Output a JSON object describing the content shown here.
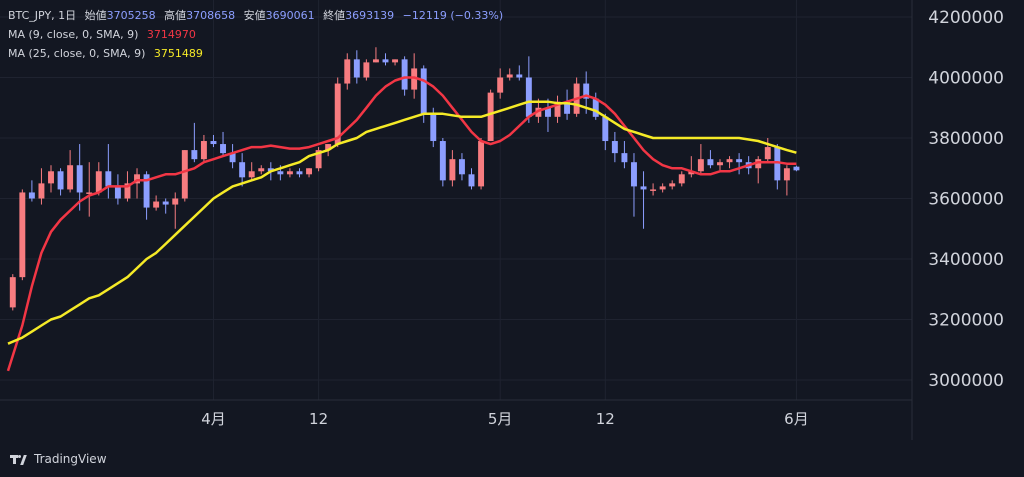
{
  "legend": {
    "symbol": "BTC_JPY, 1日",
    "open_label": "始値",
    "open_value": "3705258",
    "high_label": "高値",
    "high_value": "3708658",
    "low_label": "安値",
    "low_value": "3690061",
    "close_label": "終値",
    "close_value": "3693139",
    "change": "−12119 (−0.33%)",
    "ma9_label": "MA (9, close, 0, SMA, 9)",
    "ma9_value": "3714970",
    "ma25_label": "MA (25, close, 0, SMA, 9)",
    "ma25_value": "3751489"
  },
  "footer": {
    "brand": "TradingView"
  },
  "colors": {
    "background": "#131722",
    "grid": "#1f2330",
    "up": "#f77c80",
    "down": "#8c9eff",
    "ma9": "#f23645",
    "ma25": "#f5ea27",
    "text": "#d1d4dc"
  },
  "chart_data": {
    "type": "candlestick",
    "y_ticks": [
      3000000,
      3200000,
      3400000,
      3600000,
      3800000,
      4000000,
      4200000
    ],
    "y_tick_labels": [
      "3000000",
      "3200000",
      "3400000",
      "3600000",
      "3800000",
      "4000000",
      "4200000"
    ],
    "ylim": [
      2970000,
      4210000
    ],
    "x_ticks": [
      {
        "label": "4月",
        "index": 21
      },
      {
        "label": "12",
        "index": 32
      },
      {
        "label": "5月",
        "index": 51
      },
      {
        "label": "12",
        "index": 62
      },
      {
        "label": "6月",
        "index": 82
      }
    ],
    "x_range": [
      -0.5,
      87
    ],
    "grid": true,
    "candles": [
      [
        3240000,
        3350000,
        3340000,
        3230000
      ],
      [
        3340000,
        3630000,
        3620000,
        3330000
      ],
      [
        3620000,
        3660000,
        3600000,
        3590000
      ],
      [
        3600000,
        3700000,
        3650000,
        3580000
      ],
      [
        3650000,
        3710000,
        3690000,
        3620000
      ],
      [
        3690000,
        3700000,
        3630000,
        3610000
      ],
      [
        3630000,
        3760000,
        3710000,
        3620000
      ],
      [
        3710000,
        3780000,
        3620000,
        3560000
      ],
      [
        3620000,
        3720000,
        3620000,
        3540000
      ],
      [
        3620000,
        3720000,
        3690000,
        3610000
      ],
      [
        3690000,
        3780000,
        3640000,
        3600000
      ],
      [
        3640000,
        3680000,
        3600000,
        3580000
      ],
      [
        3600000,
        3690000,
        3650000,
        3590000
      ],
      [
        3650000,
        3700000,
        3680000,
        3600000
      ],
      [
        3680000,
        3690000,
        3570000,
        3530000
      ],
      [
        3570000,
        3610000,
        3590000,
        3560000
      ],
      [
        3590000,
        3600000,
        3580000,
        3550000
      ],
      [
        3580000,
        3620000,
        3600000,
        3500000
      ],
      [
        3600000,
        3760000,
        3760000,
        3590000
      ],
      [
        3760000,
        3850000,
        3730000,
        3720000
      ],
      [
        3730000,
        3810000,
        3790000,
        3720000
      ],
      [
        3790000,
        3810000,
        3780000,
        3770000
      ],
      [
        3780000,
        3820000,
        3750000,
        3740000
      ],
      [
        3750000,
        3780000,
        3720000,
        3700000
      ],
      [
        3720000,
        3750000,
        3670000,
        3640000
      ],
      [
        3670000,
        3720000,
        3690000,
        3660000
      ],
      [
        3690000,
        3710000,
        3700000,
        3680000
      ],
      [
        3700000,
        3720000,
        3690000,
        3660000
      ],
      [
        3690000,
        3710000,
        3680000,
        3660000
      ],
      [
        3680000,
        3700000,
        3690000,
        3670000
      ],
      [
        3690000,
        3700000,
        3680000,
        3670000
      ],
      [
        3680000,
        3700000,
        3700000,
        3670000
      ],
      [
        3700000,
        3770000,
        3760000,
        3690000
      ],
      [
        3760000,
        3780000,
        3780000,
        3740000
      ],
      [
        3780000,
        4000000,
        3980000,
        3770000
      ],
      [
        3980000,
        4080000,
        4060000,
        3960000
      ],
      [
        4060000,
        4090000,
        4000000,
        3980000
      ],
      [
        4000000,
        4060000,
        4050000,
        3990000
      ],
      [
        4050000,
        4100000,
        4060000,
        4050000
      ],
      [
        4060000,
        4080000,
        4050000,
        4040000
      ],
      [
        4050000,
        4060000,
        4060000,
        4040000
      ],
      [
        4060000,
        4070000,
        3960000,
        3940000
      ],
      [
        3960000,
        4080000,
        4030000,
        3930000
      ],
      [
        4030000,
        4040000,
        3880000,
        3850000
      ],
      [
        3880000,
        3900000,
        3790000,
        3770000
      ],
      [
        3790000,
        3800000,
        3660000,
        3640000
      ],
      [
        3660000,
        3760000,
        3730000,
        3640000
      ],
      [
        3730000,
        3750000,
        3680000,
        3660000
      ],
      [
        3680000,
        3700000,
        3640000,
        3630000
      ],
      [
        3640000,
        3800000,
        3790000,
        3630000
      ],
      [
        3790000,
        3960000,
        3950000,
        3790000
      ],
      [
        3950000,
        4030000,
        4000000,
        3930000
      ],
      [
        4000000,
        4030000,
        4010000,
        3990000
      ],
      [
        4010000,
        4040000,
        4000000,
        3990000
      ],
      [
        4000000,
        4070000,
        3870000,
        3850000
      ],
      [
        3870000,
        3930000,
        3900000,
        3850000
      ],
      [
        3900000,
        3930000,
        3870000,
        3820000
      ],
      [
        3870000,
        3940000,
        3920000,
        3850000
      ],
      [
        3920000,
        3960000,
        3880000,
        3860000
      ],
      [
        3880000,
        4000000,
        3980000,
        3870000
      ],
      [
        3980000,
        4020000,
        3930000,
        3880000
      ],
      [
        3930000,
        3950000,
        3870000,
        3860000
      ],
      [
        3870000,
        3880000,
        3790000,
        3760000
      ],
      [
        3790000,
        3820000,
        3750000,
        3720000
      ],
      [
        3750000,
        3790000,
        3720000,
        3700000
      ],
      [
        3720000,
        3750000,
        3640000,
        3540000
      ],
      [
        3640000,
        3690000,
        3630000,
        3500000
      ],
      [
        3630000,
        3650000,
        3630000,
        3610000
      ],
      [
        3630000,
        3650000,
        3640000,
        3620000
      ],
      [
        3640000,
        3660000,
        3650000,
        3630000
      ],
      [
        3650000,
        3690000,
        3680000,
        3640000
      ],
      [
        3680000,
        3740000,
        3690000,
        3670000
      ],
      [
        3690000,
        3780000,
        3730000,
        3680000
      ],
      [
        3730000,
        3760000,
        3710000,
        3700000
      ],
      [
        3710000,
        3730000,
        3720000,
        3690000
      ],
      [
        3720000,
        3740000,
        3730000,
        3700000
      ],
      [
        3730000,
        3750000,
        3720000,
        3680000
      ],
      [
        3720000,
        3740000,
        3700000,
        3680000
      ],
      [
        3700000,
        3740000,
        3730000,
        3650000
      ],
      [
        3730000,
        3800000,
        3770000,
        3720000
      ],
      [
        3770000,
        3780000,
        3660000,
        3630000
      ],
      [
        3660000,
        3710000,
        3700000,
        3610000
      ],
      [
        3705258,
        3708658,
        3693139,
        3690061
      ]
    ],
    "series": [
      {
        "name": "MA (9, close, 0, SMA, 9)",
        "color": "#f23645",
        "points": [
          [
            -0.5,
            3030000
          ],
          [
            1,
            3180000
          ],
          [
            2,
            3310000
          ],
          [
            3,
            3420000
          ],
          [
            4,
            3490000
          ],
          [
            5,
            3530000
          ],
          [
            6,
            3560000
          ],
          [
            7,
            3590000
          ],
          [
            8,
            3610000
          ],
          [
            9,
            3620000
          ],
          [
            10,
            3640000
          ],
          [
            11,
            3640000
          ],
          [
            12,
            3640000
          ],
          [
            13,
            3660000
          ],
          [
            14,
            3660000
          ],
          [
            15,
            3670000
          ],
          [
            16,
            3680000
          ],
          [
            17,
            3680000
          ],
          [
            18,
            3690000
          ],
          [
            19,
            3700000
          ],
          [
            20,
            3720000
          ],
          [
            21,
            3730000
          ],
          [
            22,
            3740000
          ],
          [
            23,
            3750000
          ],
          [
            24,
            3760000
          ],
          [
            25,
            3770000
          ],
          [
            26,
            3770000
          ],
          [
            27,
            3775000
          ],
          [
            28,
            3770000
          ],
          [
            29,
            3765000
          ],
          [
            30,
            3765000
          ],
          [
            31,
            3770000
          ],
          [
            32,
            3780000
          ],
          [
            33,
            3790000
          ],
          [
            34,
            3800000
          ],
          [
            35,
            3830000
          ],
          [
            36,
            3860000
          ],
          [
            37,
            3900000
          ],
          [
            38,
            3940000
          ],
          [
            39,
            3970000
          ],
          [
            40,
            3990000
          ],
          [
            41,
            4000000
          ],
          [
            42,
            4000000
          ],
          [
            43,
            3990000
          ],
          [
            44,
            3970000
          ],
          [
            45,
            3940000
          ],
          [
            46,
            3900000
          ],
          [
            47,
            3860000
          ],
          [
            48,
            3820000
          ],
          [
            49,
            3790000
          ],
          [
            50,
            3780000
          ],
          [
            51,
            3790000
          ],
          [
            52,
            3810000
          ],
          [
            53,
            3840000
          ],
          [
            54,
            3870000
          ],
          [
            55,
            3890000
          ],
          [
            56,
            3900000
          ],
          [
            57,
            3910000
          ],
          [
            58,
            3920000
          ],
          [
            59,
            3930000
          ],
          [
            60,
            3940000
          ],
          [
            61,
            3930000
          ],
          [
            62,
            3910000
          ],
          [
            63,
            3880000
          ],
          [
            64,
            3840000
          ],
          [
            65,
            3800000
          ],
          [
            66,
            3760000
          ],
          [
            67,
            3730000
          ],
          [
            68,
            3710000
          ],
          [
            69,
            3700000
          ],
          [
            70,
            3700000
          ],
          [
            71,
            3690000
          ],
          [
            72,
            3680000
          ],
          [
            73,
            3680000
          ],
          [
            74,
            3690000
          ],
          [
            75,
            3690000
          ],
          [
            76,
            3700000
          ],
          [
            77,
            3710000
          ],
          [
            78,
            3720000
          ],
          [
            79,
            3720000
          ],
          [
            80,
            3720000
          ],
          [
            81,
            3715000
          ],
          [
            82,
            3714970
          ]
        ]
      },
      {
        "name": "MA (25, close, 0, SMA, 9)",
        "color": "#f5ea27",
        "points": [
          [
            -0.5,
            3120000
          ],
          [
            1,
            3140000
          ],
          [
            2,
            3160000
          ],
          [
            3,
            3180000
          ],
          [
            4,
            3200000
          ],
          [
            5,
            3210000
          ],
          [
            6,
            3230000
          ],
          [
            7,
            3250000
          ],
          [
            8,
            3270000
          ],
          [
            9,
            3280000
          ],
          [
            10,
            3300000
          ],
          [
            11,
            3320000
          ],
          [
            12,
            3340000
          ],
          [
            13,
            3370000
          ],
          [
            14,
            3400000
          ],
          [
            15,
            3420000
          ],
          [
            16,
            3450000
          ],
          [
            17,
            3480000
          ],
          [
            18,
            3510000
          ],
          [
            19,
            3540000
          ],
          [
            20,
            3570000
          ],
          [
            21,
            3600000
          ],
          [
            22,
            3620000
          ],
          [
            23,
            3640000
          ],
          [
            24,
            3650000
          ],
          [
            25,
            3660000
          ],
          [
            26,
            3670000
          ],
          [
            27,
            3690000
          ],
          [
            28,
            3700000
          ],
          [
            29,
            3710000
          ],
          [
            30,
            3720000
          ],
          [
            31,
            3740000
          ],
          [
            32,
            3750000
          ],
          [
            33,
            3760000
          ],
          [
            34,
            3780000
          ],
          [
            35,
            3790000
          ],
          [
            36,
            3800000
          ],
          [
            37,
            3820000
          ],
          [
            38,
            3830000
          ],
          [
            39,
            3840000
          ],
          [
            40,
            3850000
          ],
          [
            41,
            3860000
          ],
          [
            42,
            3870000
          ],
          [
            43,
            3880000
          ],
          [
            44,
            3880000
          ],
          [
            45,
            3880000
          ],
          [
            46,
            3875000
          ],
          [
            47,
            3870000
          ],
          [
            48,
            3870000
          ],
          [
            49,
            3870000
          ],
          [
            50,
            3880000
          ],
          [
            51,
            3890000
          ],
          [
            52,
            3900000
          ],
          [
            53,
            3910000
          ],
          [
            54,
            3920000
          ],
          [
            55,
            3920000
          ],
          [
            56,
            3920000
          ],
          [
            57,
            3915000
          ],
          [
            58,
            3915000
          ],
          [
            59,
            3910000
          ],
          [
            60,
            3900000
          ],
          [
            61,
            3890000
          ],
          [
            62,
            3870000
          ],
          [
            63,
            3850000
          ],
          [
            64,
            3830000
          ],
          [
            65,
            3820000
          ],
          [
            66,
            3810000
          ],
          [
            67,
            3800000
          ],
          [
            68,
            3800000
          ],
          [
            69,
            3800000
          ],
          [
            70,
            3800000
          ],
          [
            71,
            3800000
          ],
          [
            72,
            3800000
          ],
          [
            73,
            3800000
          ],
          [
            74,
            3800000
          ],
          [
            75,
            3800000
          ],
          [
            76,
            3800000
          ],
          [
            77,
            3795000
          ],
          [
            78,
            3790000
          ],
          [
            79,
            3780000
          ],
          [
            80,
            3770000
          ],
          [
            81,
            3760000
          ],
          [
            82,
            3751489
          ]
        ]
      }
    ]
  }
}
